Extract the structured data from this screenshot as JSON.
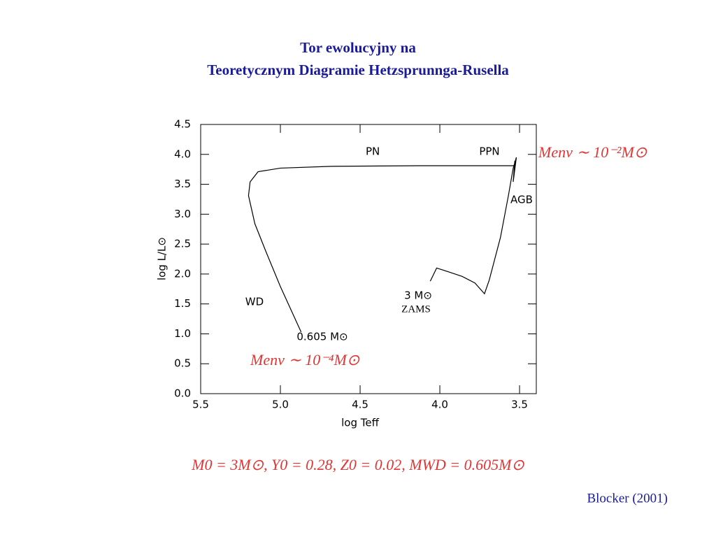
{
  "chart_data": {
    "type": "line",
    "title": "Tor ewolucyjny na",
    "subtitle": "Teoretycznym Diagramie Hetzsprunnga-Rusella",
    "x_label": "log Teff",
    "y_label": "log L/L⊙",
    "color": "#000000",
    "x": [
      4.06,
      4.02,
      3.95,
      3.86,
      3.78,
      3.72,
      3.69,
      3.62,
      3.57,
      3.54,
      3.52,
      3.54,
      3.53,
      3.53,
      4.13,
      4.68,
      5.0,
      5.14,
      5.19,
      5.2,
      5.16,
      5.09,
      5.0,
      4.87
    ],
    "values": [
      1.88,
      2.1,
      2.04,
      1.96,
      1.85,
      1.67,
      1.9,
      2.61,
      3.31,
      3.77,
      3.95,
      3.54,
      3.89,
      3.81,
      3.81,
      3.8,
      3.77,
      3.71,
      3.54,
      3.31,
      2.84,
      2.37,
      1.79,
      1.03
    ],
    "xlim": [
      5.5,
      3.395
    ],
    "ylim": [
      0,
      4.5
    ],
    "xticks": [
      5.5,
      {
        "value": 5.0,
        "label": "5.0"
      },
      4.5,
      {
        "value": 4.0,
        "label": "4.0"
      },
      3.5
    ],
    "yticks": [
      {
        "value": 0.0,
        "label": "0.0"
      },
      0.5,
      {
        "value": 1.0,
        "label": "1.0"
      },
      1.5,
      {
        "value": 2.0,
        "label": "2.0"
      },
      2.5,
      {
        "value": 3.0,
        "label": "3.0"
      },
      3.5,
      {
        "value": 4.0,
        "label": "4.0"
      },
      4.5
    ],
    "annotations": [
      "PN",
      "PPN",
      "AGB",
      "WD",
      "3 M⊙",
      "ZAMS",
      "0.605 M⊙",
      "Menv ∼ 10⁻²M⊙",
      "Menv ∼ 10⁻⁴M⊙"
    ],
    "caption": "M0 = 3M⊙, Y0 = 0.28, Z0 = 0.02, MWD = 0.605M⊙",
    "source": "Blocker (2001)"
  }
}
